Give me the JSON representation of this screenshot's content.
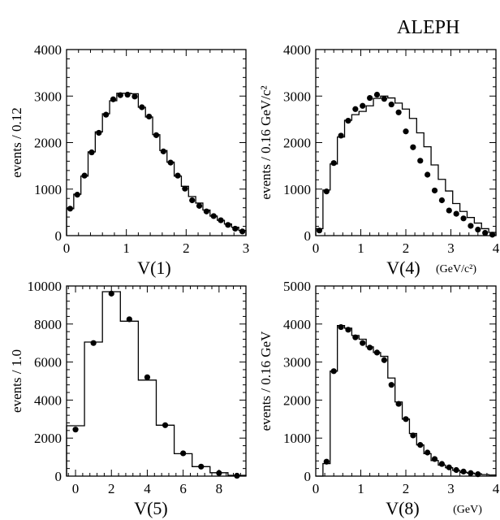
{
  "figure": {
    "experiment_label": "ALEPH"
  },
  "chart_data": [
    {
      "type": "scatter",
      "name": "panel-v1",
      "title": "",
      "xlabel": "V(1)",
      "x_unit_label": "",
      "ylabel": "events / 0.12",
      "xlim": [
        0,
        3
      ],
      "ylim": [
        0,
        4000
      ],
      "xticks": [
        0,
        1,
        2,
        3
      ],
      "yticks": [
        0,
        1000,
        2000,
        3000,
        4000
      ],
      "bin_edges": [
        0.0,
        0.12,
        0.24,
        0.36,
        0.48,
        0.6,
        0.72,
        0.84,
        0.96,
        1.08,
        1.2,
        1.32,
        1.44,
        1.56,
        1.68,
        1.8,
        1.92,
        2.04,
        2.16,
        2.28,
        2.4,
        2.52,
        2.64,
        2.76,
        2.88,
        3.0
      ],
      "series": [
        {
          "name": "",
          "kind": "histogram",
          "values": [
            580,
            890,
            1280,
            1800,
            2230,
            2620,
            2900,
            3060,
            3060,
            3050,
            2760,
            2550,
            2170,
            1830,
            1580,
            1280,
            1060,
            840,
            700,
            550,
            420,
            330,
            250,
            180,
            110
          ]
        },
        {
          "name": "",
          "kind": "points",
          "x": [
            0.06,
            0.18,
            0.3,
            0.42,
            0.54,
            0.66,
            0.78,
            0.9,
            1.02,
            1.14,
            1.26,
            1.38,
            1.5,
            1.62,
            1.74,
            1.86,
            1.98,
            2.1,
            2.22,
            2.34,
            2.46,
            2.58,
            2.7,
            2.82,
            2.94
          ],
          "y": [
            580,
            880,
            1290,
            1790,
            2210,
            2600,
            2930,
            3020,
            3030,
            2990,
            2760,
            2560,
            2160,
            1810,
            1570,
            1290,
            1010,
            760,
            640,
            520,
            420,
            330,
            230,
            150,
            90
          ]
        }
      ]
    },
    {
      "type": "scatter",
      "name": "panel-v4",
      "title": "",
      "xlabel": "V(4)",
      "x_unit_label": "(GeV/c²)",
      "ylabel": "events / 0.16 GeV/c²",
      "xlim": [
        0,
        4
      ],
      "ylim": [
        0,
        4000
      ],
      "xticks": [
        0,
        1,
        2,
        3,
        4
      ],
      "yticks": [
        0,
        1000,
        2000,
        3000,
        4000
      ],
      "bin_edges": [
        0.0,
        0.16,
        0.32,
        0.48,
        0.64,
        0.8,
        0.96,
        1.12,
        1.28,
        1.44,
        1.6,
        1.76,
        1.92,
        2.08,
        2.24,
        2.4,
        2.56,
        2.72,
        2.88,
        3.04,
        3.2,
        3.36,
        3.52,
        3.68,
        3.84,
        4.0
      ],
      "series": [
        {
          "name": "",
          "kind": "histogram",
          "values": [
            150,
            980,
            1540,
            2120,
            2480,
            2600,
            2670,
            2790,
            2950,
            3000,
            2960,
            2850,
            2720,
            2520,
            2210,
            1910,
            1520,
            1210,
            960,
            690,
            520,
            390,
            270,
            150,
            70
          ]
        },
        {
          "name": "",
          "kind": "points",
          "x": [
            0.08,
            0.24,
            0.4,
            0.56,
            0.72,
            0.88,
            1.04,
            1.2,
            1.36,
            1.52,
            1.68,
            1.84,
            2.0,
            2.16,
            2.32,
            2.48,
            2.64,
            2.8,
            2.96,
            3.12,
            3.28,
            3.44,
            3.6,
            3.76,
            3.92
          ],
          "y": [
            110,
            950,
            1560,
            2150,
            2470,
            2720,
            2790,
            2960,
            3030,
            2940,
            2820,
            2650,
            2240,
            1900,
            1610,
            1310,
            970,
            760,
            540,
            470,
            370,
            210,
            130,
            60,
            20
          ]
        }
      ]
    },
    {
      "type": "scatter",
      "name": "panel-v5",
      "title": "",
      "xlabel": "V(5)",
      "x_unit_label": "",
      "ylabel": "events / 1.0",
      "xlim": [
        -0.5,
        9.5
      ],
      "ylim": [
        0,
        10000
      ],
      "xticks": [
        0,
        2,
        4,
        6,
        8
      ],
      "yticks": [
        0,
        2000,
        4000,
        6000,
        8000,
        10000
      ],
      "bin_edges": [
        -0.5,
        0.5,
        1.5,
        2.5,
        3.5,
        4.5,
        5.5,
        6.5,
        7.5,
        8.5,
        9.5
      ],
      "series": [
        {
          "name": "",
          "kind": "histogram",
          "values": [
            2650,
            7050,
            9700,
            8150,
            5050,
            2680,
            1180,
            500,
            180,
            40
          ]
        },
        {
          "name": "",
          "kind": "points",
          "x": [
            0,
            1,
            2,
            3,
            4,
            5,
            6,
            7,
            8,
            9
          ],
          "y": [
            2450,
            7000,
            9600,
            8250,
            5200,
            2680,
            1200,
            500,
            160,
            20
          ]
        }
      ]
    },
    {
      "type": "scatter",
      "name": "panel-v8",
      "title": "",
      "xlabel": "V(8)",
      "x_unit_label": "(GeV)",
      "ylabel": "events / 0.16 GeV",
      "xlim": [
        0,
        4
      ],
      "ylim": [
        0,
        5000
      ],
      "xticks": [
        0,
        1,
        2,
        3,
        4
      ],
      "yticks": [
        0,
        1000,
        2000,
        3000,
        4000,
        5000
      ],
      "bin_edges": [
        0.0,
        0.16,
        0.32,
        0.48,
        0.64,
        0.8,
        0.96,
        1.12,
        1.28,
        1.44,
        1.6,
        1.76,
        1.92,
        2.08,
        2.24,
        2.4,
        2.56,
        2.72,
        2.88,
        3.04,
        3.2,
        3.36,
        3.52,
        3.68,
        3.84,
        4.0
      ],
      "series": [
        {
          "name": "",
          "kind": "histogram",
          "values": [
            0,
            330,
            2760,
            3960,
            3890,
            3700,
            3600,
            3400,
            3250,
            3150,
            2580,
            1950,
            1500,
            1120,
            820,
            590,
            410,
            290,
            220,
            150,
            100,
            80,
            60,
            40,
            30
          ]
        },
        {
          "name": "",
          "kind": "points",
          "x": [
            0.24,
            0.4,
            0.56,
            0.72,
            0.88,
            1.04,
            1.2,
            1.36,
            1.52,
            1.68,
            1.84,
            2.0,
            2.16,
            2.32,
            2.48,
            2.64,
            2.8,
            2.96,
            3.12,
            3.28,
            3.44,
            3.6
          ],
          "y": [
            380,
            2760,
            3920,
            3850,
            3650,
            3500,
            3380,
            3250,
            3050,
            2400,
            1900,
            1500,
            1070,
            820,
            620,
            450,
            320,
            230,
            160,
            120,
            80,
            50
          ]
        }
      ]
    }
  ]
}
